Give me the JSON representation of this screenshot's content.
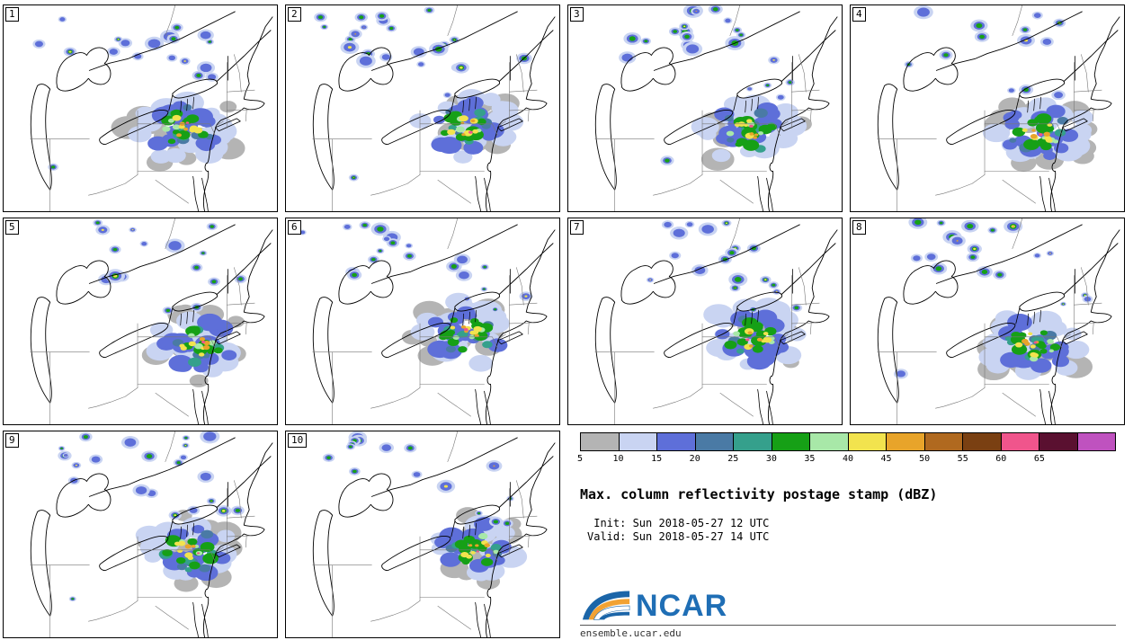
{
  "legend": {
    "title": "Max. column reflectivity postage stamp (dBZ)",
    "init_line": " Init: Sun 2018-05-27 12 UTC",
    "valid_line": "Valid: Sun 2018-05-27 14 UTC"
  },
  "branding": {
    "name": "NCAR",
    "url": "ensemble.ucar.edu"
  },
  "colorbar": {
    "units": "dBZ",
    "segments": [
      {
        "color": "#b4b4b4",
        "label": "5"
      },
      {
        "color": "#c9d4f2",
        "label": "10"
      },
      {
        "color": "#5e6fd9",
        "label": "15"
      },
      {
        "color": "#4a7aa5",
        "label": "20"
      },
      {
        "color": "#35a08c",
        "label": "25"
      },
      {
        "color": "#16a016",
        "label": "30"
      },
      {
        "color": "#a8e8a8",
        "label": "35"
      },
      {
        "color": "#f2e34e",
        "label": "40"
      },
      {
        "color": "#e8a42a",
        "label": "45"
      },
      {
        "color": "#b0691f",
        "label": "50"
      },
      {
        "color": "#7a4012",
        "label": "55"
      },
      {
        "color": "#f0558c",
        "label": "60"
      },
      {
        "color": "#5a1030",
        "label": "65"
      },
      {
        "color": "#bf52bf",
        "label": ""
      }
    ]
  },
  "panels": [
    {
      "id": "1"
    },
    {
      "id": "2"
    },
    {
      "id": "3"
    },
    {
      "id": "4"
    },
    {
      "id": "5"
    },
    {
      "id": "6"
    },
    {
      "id": "7"
    },
    {
      "id": "8"
    },
    {
      "id": "9"
    },
    {
      "id": "10"
    }
  ]
}
